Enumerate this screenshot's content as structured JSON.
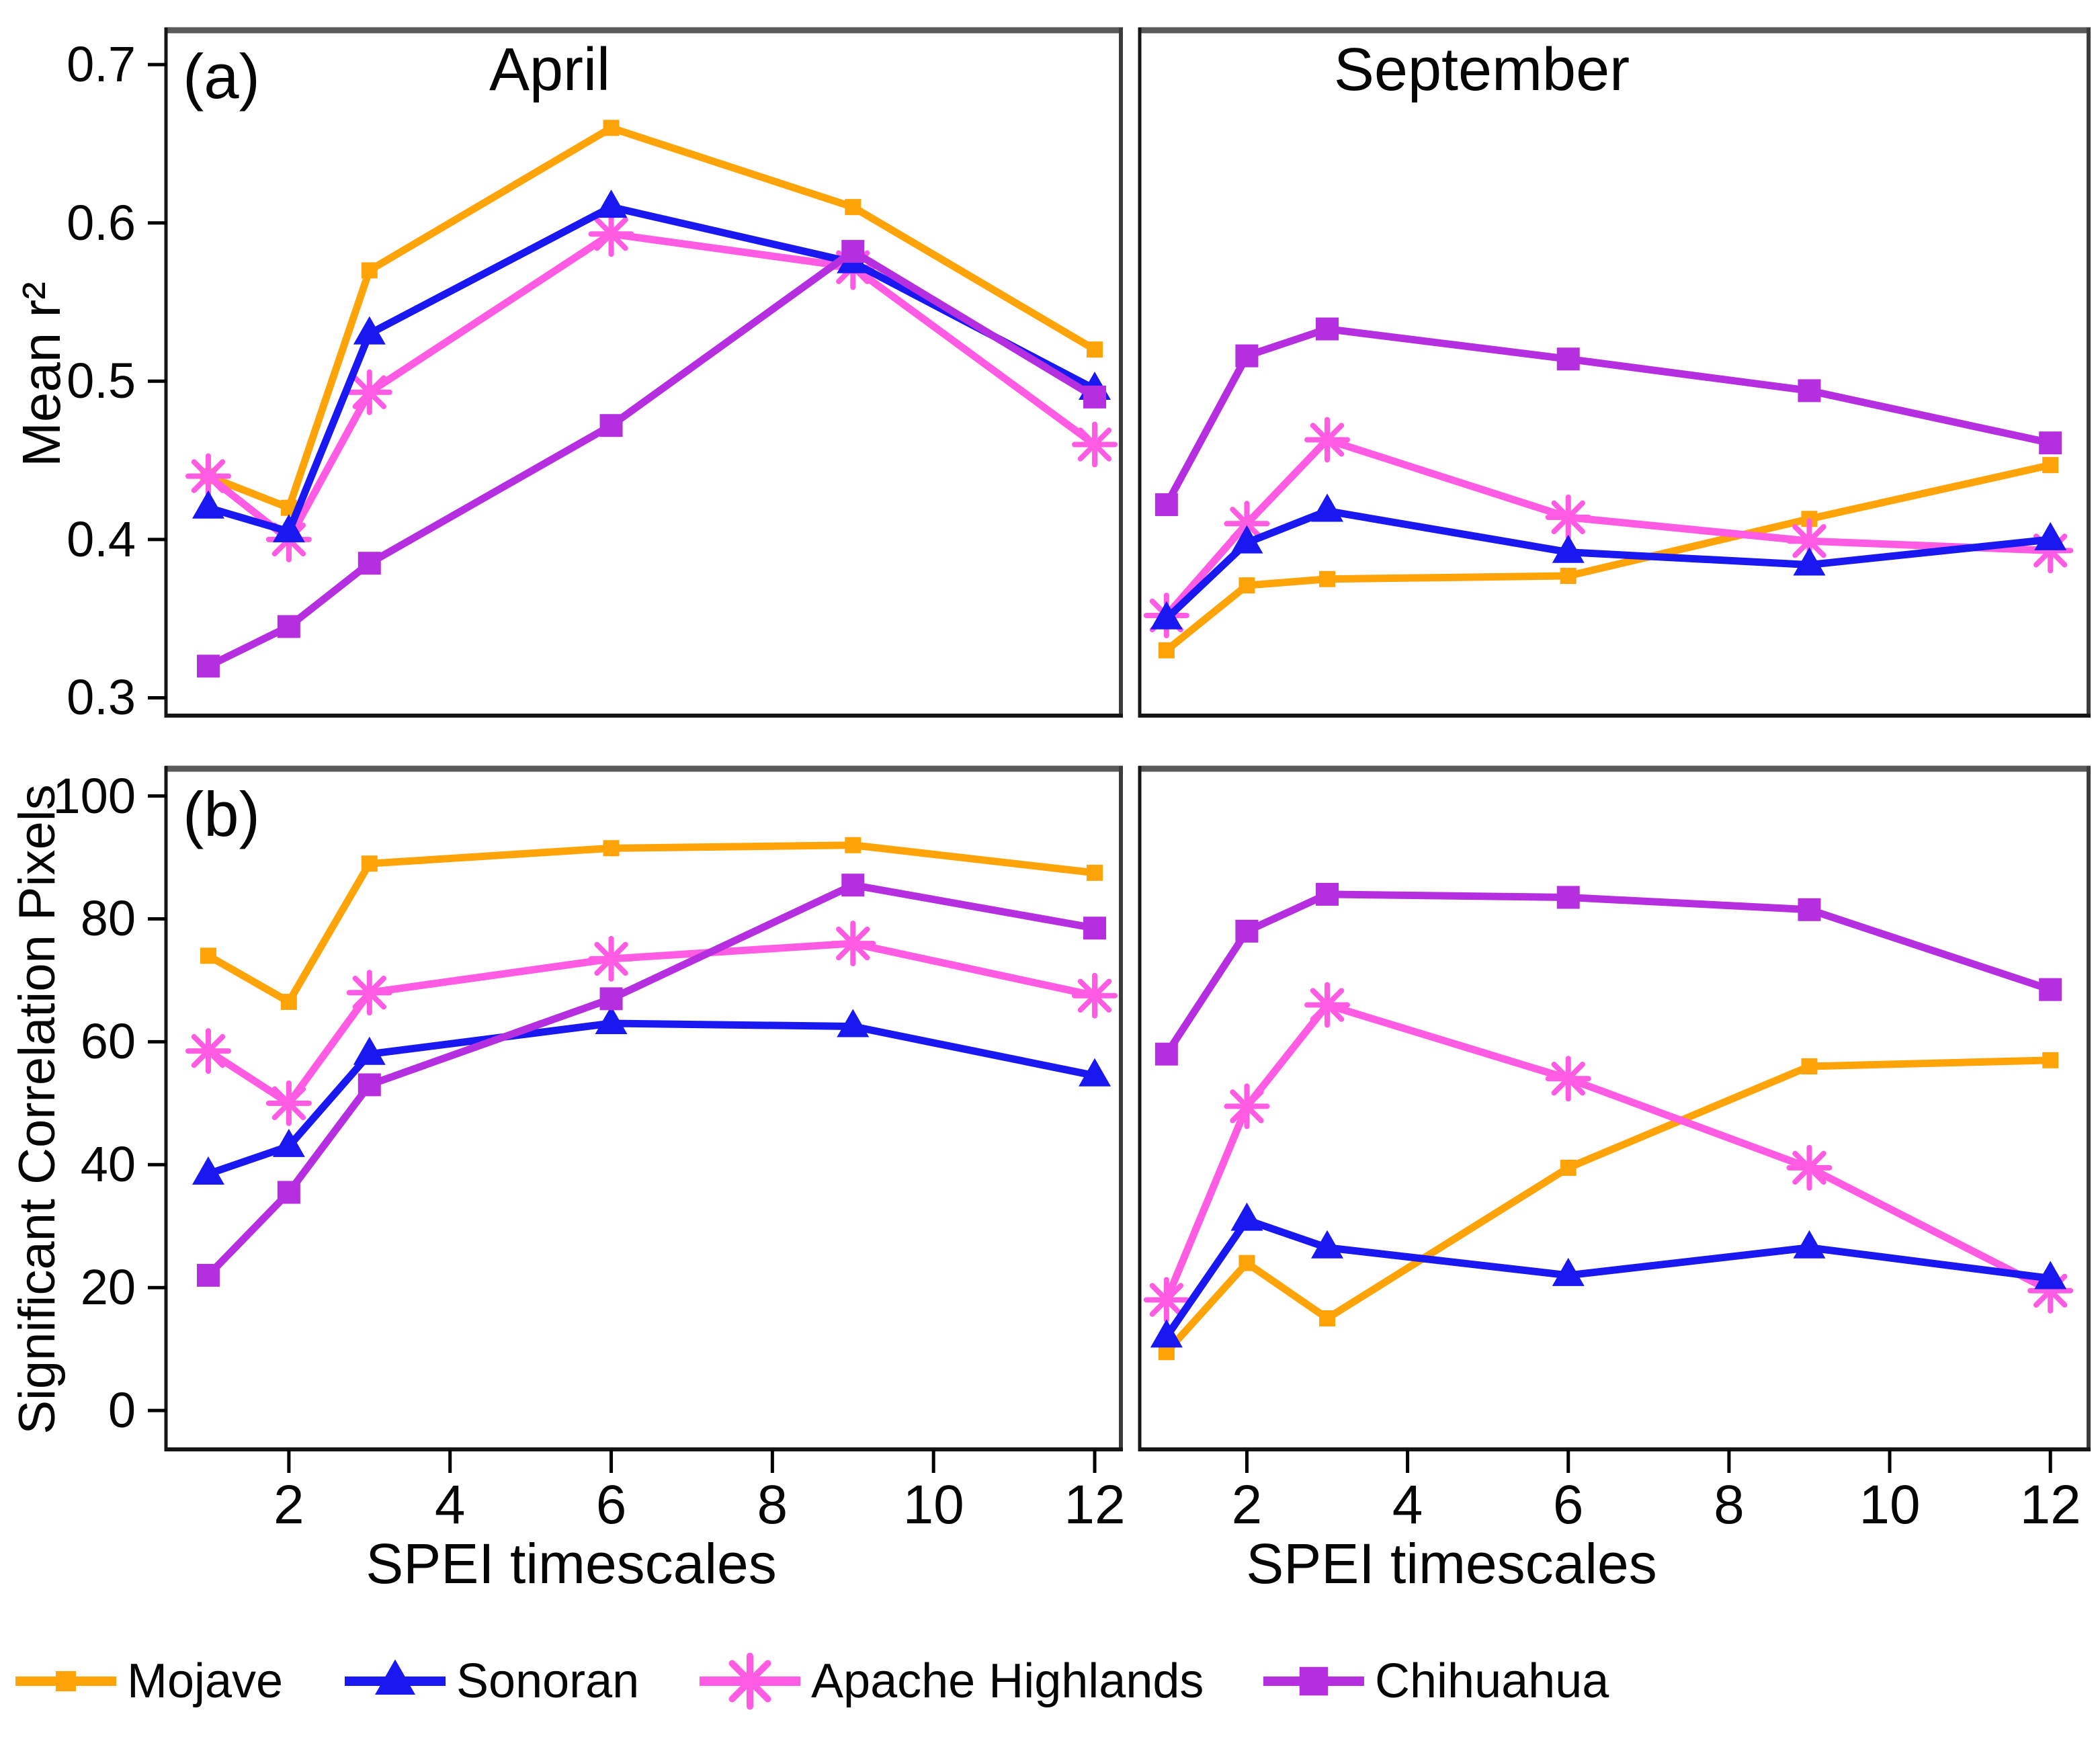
{
  "figure": {
    "panel_titles": {
      "top_left": "April",
      "top_right": "September"
    },
    "panel_tags": {
      "top_left": "(a)",
      "bottom_left": "(b)"
    },
    "y_axis_top_label": "Mean r²",
    "y_axis_bottom_label": "Significant Correlation Pixels",
    "x_axis_label": "SPEI timescales",
    "colors": {
      "mojave": "#FFA408",
      "sonoran": "#1A18F0",
      "apache_highlands": "#FF5CE3",
      "chihuahua": "#B52FE0",
      "panel_border_top": "#5a5a5a",
      "panel_border": "#161616",
      "panel_border_right": "#3c3c3c",
      "text": "#060606"
    },
    "legend": [
      {
        "id": "mojave",
        "label": "Mojave",
        "marker": "square-small",
        "color": "#FFA408"
      },
      {
        "id": "sonoran",
        "label": "Sonoran",
        "marker": "triangle",
        "color": "#1A18F0"
      },
      {
        "id": "apache-highlands",
        "label": "Apache Highlands",
        "marker": "asterisk",
        "color": "#FF5CE3"
      },
      {
        "id": "chihuahua",
        "label": "Chihuahua",
        "marker": "square",
        "color": "#B52FE0"
      }
    ]
  },
  "chart_data": [
    {
      "type": "line",
      "panel": "top-left",
      "title": "April",
      "tag": "(a)",
      "ylabel": "Mean r²",
      "xlabel": "",
      "x": [
        1,
        2,
        3,
        6,
        9,
        12
      ],
      "x_ticks": [
        2,
        4,
        6,
        8,
        10,
        12
      ],
      "y_ticks": [
        0.3,
        0.4,
        0.5,
        0.6,
        0.7
      ],
      "ylim": [
        0.29,
        0.72
      ],
      "xlim": [
        0.5,
        12.3
      ],
      "grid": false,
      "series": [
        {
          "name": "Mojave",
          "marker": "square-small",
          "color": "#FFA408",
          "values": [
            0.44,
            0.42,
            0.57,
            0.66,
            0.61,
            0.52
          ]
        },
        {
          "name": "Sonoran",
          "marker": "triangle",
          "color": "#1A18F0",
          "values": [
            0.42,
            0.405,
            0.53,
            0.61,
            0.575,
            0.495
          ]
        },
        {
          "name": "Apache Highlands",
          "marker": "asterisk",
          "color": "#FF5CE3",
          "values": [
            0.44,
            0.4,
            0.493,
            0.593,
            0.572,
            0.46
          ]
        },
        {
          "name": "Chihuahua",
          "marker": "square",
          "color": "#B52FE0",
          "values": [
            0.32,
            0.345,
            0.385,
            0.472,
            0.582,
            0.49
          ]
        }
      ]
    },
    {
      "type": "line",
      "panel": "top-right",
      "title": "September",
      "tag": "",
      "ylabel": "Mean r²",
      "xlabel": "",
      "x": [
        1,
        2,
        3,
        6,
        9,
        12
      ],
      "x_ticks": [
        2,
        4,
        6,
        8,
        10,
        12
      ],
      "y_ticks": [
        0.3,
        0.4,
        0.5,
        0.6,
        0.7
      ],
      "ylim": [
        0.29,
        0.72
      ],
      "xlim": [
        0.7,
        12.45
      ],
      "grid": false,
      "series": [
        {
          "name": "Mojave",
          "marker": "square-small",
          "color": "#FFA408",
          "values": [
            0.33,
            0.371,
            0.375,
            0.377,
            0.413,
            0.447
          ]
        },
        {
          "name": "Sonoran",
          "marker": "triangle",
          "color": "#1A18F0",
          "values": [
            0.35,
            0.398,
            0.418,
            0.392,
            0.384,
            0.4
          ]
        },
        {
          "name": "Apache Highlands",
          "marker": "asterisk",
          "color": "#FF5CE3",
          "values": [
            0.352,
            0.41,
            0.463,
            0.414,
            0.399,
            0.393
          ]
        },
        {
          "name": "Chihuahua",
          "marker": "square",
          "color": "#B52FE0",
          "values": [
            0.422,
            0.516,
            0.533,
            0.514,
            0.494,
            0.461
          ]
        }
      ]
    },
    {
      "type": "line",
      "panel": "bottom-left",
      "title": "",
      "tag": "(b)",
      "ylabel": "Significant Correlation Pixels",
      "xlabel": "SPEI timescales",
      "x": [
        1,
        2,
        3,
        6,
        9,
        12
      ],
      "x_ticks": [
        2,
        4,
        6,
        8,
        10,
        12
      ],
      "y_ticks": [
        0,
        20,
        40,
        60,
        80,
        100
      ],
      "ylim": [
        -6,
        104
      ],
      "xlim": [
        0.5,
        12.3
      ],
      "grid": false,
      "series": [
        {
          "name": "Mojave",
          "marker": "square-small",
          "color": "#FFA408",
          "values": [
            74,
            66.5,
            89,
            91.5,
            92,
            87.5
          ]
        },
        {
          "name": "Sonoran",
          "marker": "triangle",
          "color": "#1A18F0",
          "values": [
            38.5,
            43,
            58,
            63,
            62.5,
            54.5
          ]
        },
        {
          "name": "Apache Highlands",
          "marker": "asterisk",
          "color": "#FF5CE3",
          "values": [
            58.5,
            50,
            68,
            73.5,
            76,
            67.5
          ]
        },
        {
          "name": "Chihuahua",
          "marker": "square",
          "color": "#B52FE0",
          "values": [
            22,
            35.5,
            53,
            67,
            85.5,
            78.5
          ]
        }
      ]
    },
    {
      "type": "line",
      "panel": "bottom-right",
      "title": "",
      "tag": "",
      "ylabel": "Significant Correlation Pixels",
      "xlabel": "SPEI timescales",
      "x": [
        1,
        2,
        3,
        6,
        9,
        12
      ],
      "x_ticks": [
        2,
        4,
        6,
        8,
        10,
        12
      ],
      "y_ticks": [
        0,
        20,
        40,
        60,
        80,
        100
      ],
      "ylim": [
        -6,
        104
      ],
      "xlim": [
        0.7,
        12.45
      ],
      "grid": false,
      "series": [
        {
          "name": "Mojave",
          "marker": "square-small",
          "color": "#FFA408",
          "values": [
            9.5,
            24,
            15,
            39.5,
            56,
            57
          ]
        },
        {
          "name": "Sonoran",
          "marker": "triangle",
          "color": "#1A18F0",
          "values": [
            12,
            31,
            26.5,
            22,
            26.5,
            21.5
          ]
        },
        {
          "name": "Apache Highlands",
          "marker": "asterisk",
          "color": "#FF5CE3",
          "values": [
            18,
            49.5,
            66,
            54,
            39.5,
            19.5
          ]
        },
        {
          "name": "Chihuahua",
          "marker": "square",
          "color": "#B52FE0",
          "values": [
            58,
            78,
            84,
            83.5,
            81.5,
            68.5
          ]
        }
      ]
    }
  ]
}
